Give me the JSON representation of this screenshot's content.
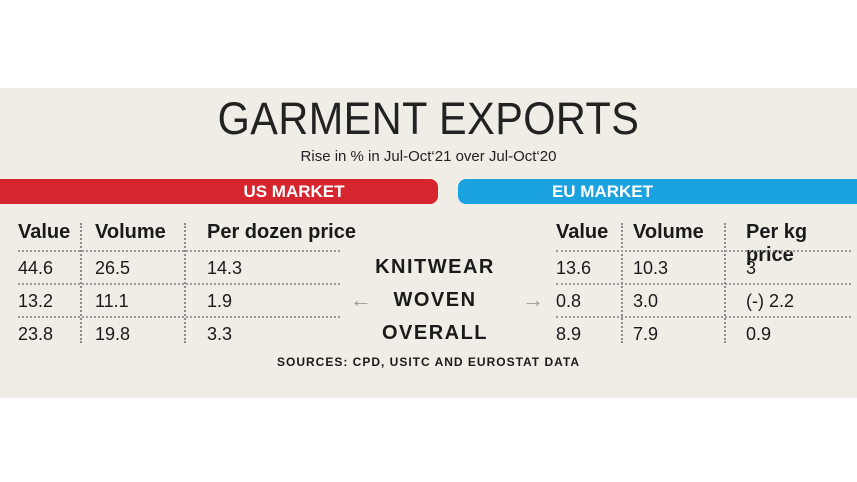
{
  "title": "GARMENT EXPORTS",
  "subtitle": "Rise in % in Jul-Oct‘21 over Jul-Oct‘20",
  "us_market": {
    "label": "US MARKET",
    "columns": [
      "Value",
      "Volume",
      "Per dozen price"
    ],
    "rows": [
      [
        "44.6",
        "26.5",
        "14.3"
      ],
      [
        "13.2",
        "11.1",
        "1.9"
      ],
      [
        "23.8",
        "19.8",
        "3.3"
      ]
    ]
  },
  "eu_market": {
    "label": "EU MARKET",
    "columns": [
      "Value",
      "Volume",
      "Per kg price"
    ],
    "rows": [
      [
        "13.6",
        "10.3",
        "3"
      ],
      [
        "0.8",
        "3.0",
        "(-) 2.2"
      ],
      [
        "8.9",
        "7.9",
        "0.9"
      ]
    ]
  },
  "categories": [
    "KNITWEAR",
    "WOVEN",
    "OVERALL"
  ],
  "arrows": {
    "left": "←",
    "right": "→"
  },
  "sources": "SOURCES: CPD, USITC AND EUROSTAT DATA",
  "colors": {
    "us_bar": "#d6252e",
    "eu_bar": "#1aa3e0",
    "background": "#efede5"
  }
}
